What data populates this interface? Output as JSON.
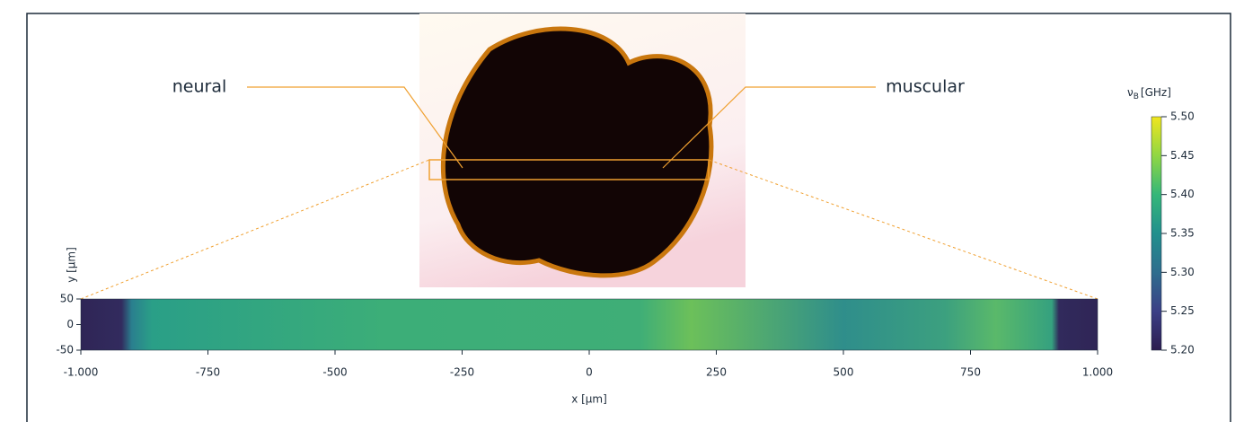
{
  "chart_data": {
    "type": "heatmap",
    "annotations": [
      "neural",
      "muscular"
    ],
    "xlabel": "x [µm]",
    "ylabel": "y [µm]",
    "xlim": [
      -1000,
      1000
    ],
    "xticks": [
      {
        "value": -1000,
        "label": "-1.000"
      },
      -750,
      -500,
      -250,
      0,
      250,
      500,
      750,
      {
        "value": 1000,
        "label": "1.000"
      }
    ],
    "ylim": [
      -50,
      50
    ],
    "yticks": [
      -50,
      0,
      50
    ],
    "colorbar": {
      "symbol": "ν",
      "subscript": "B",
      "unit": "[GHz]",
      "lim": [
        5.2,
        5.5
      ],
      "ticks": [
        {
          "value": 5.2,
          "label": "5.20"
        },
        5.25,
        {
          "value": 5.3,
          "label": "5.30"
        },
        5.35,
        {
          "value": 5.4,
          "label": "5.40"
        },
        5.45,
        {
          "value": 5.5,
          "label": "5.50"
        }
      ],
      "colormap": [
        "#2c1c4f",
        "#3b3f86",
        "#2e6d8e",
        "#21908d",
        "#35b779",
        "#90d743",
        "#f0e51e"
      ]
    }
  }
}
